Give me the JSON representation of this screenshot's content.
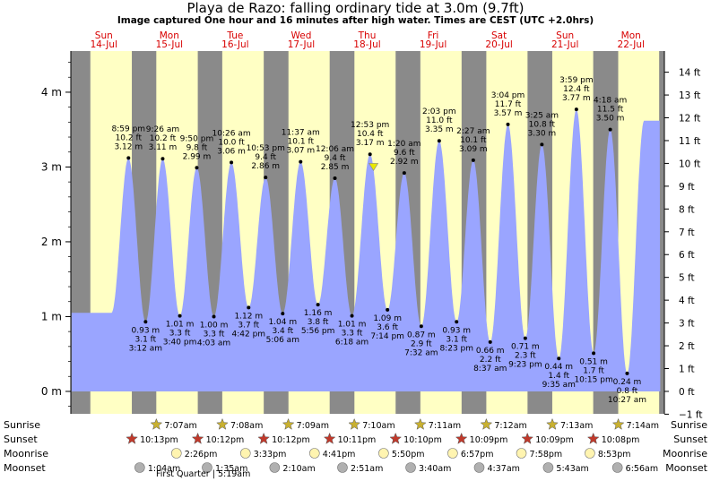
{
  "chart_data": {
    "type": "area",
    "title": "Playa de Razo: falling  ordinary tide at 3.0m (9.7ft)",
    "subtitle": "Image captured One hour and 16 minutes after high water. Times are CEST (UTC +2.0hrs)",
    "days": [
      {
        "name": "Sun",
        "date": "14-Jul"
      },
      {
        "name": "Mon",
        "date": "15-Jul"
      },
      {
        "name": "Tue",
        "date": "16-Jul"
      },
      {
        "name": "Wed",
        "date": "17-Jul"
      },
      {
        "name": "Thu",
        "date": "18-Jul"
      },
      {
        "name": "Fri",
        "date": "19-Jul"
      },
      {
        "name": "Sat",
        "date": "20-Jul"
      },
      {
        "name": "Sun",
        "date": "21-Jul"
      },
      {
        "name": "Mon",
        "date": "22-Jul"
      }
    ],
    "y_left_unit": "m",
    "y_left_ticks": [
      {
        "value": 0,
        "label": "0 m"
      },
      {
        "value": 1,
        "label": "1 m"
      },
      {
        "value": 2,
        "label": "2 m"
      },
      {
        "value": 3,
        "label": "3 m"
      },
      {
        "value": 4,
        "label": "4 m"
      }
    ],
    "y_right_ticks": [
      "−1 ft",
      "0 ft",
      "1 ft",
      "2 ft",
      "3 ft",
      "4 ft",
      "5 ft",
      "6 ft",
      "7 ft",
      "8 ft",
      "9 ft",
      "10 ft",
      "11 ft",
      "12 ft",
      "13 ft",
      "14 ft"
    ],
    "ylim_m": [
      -0.3,
      4.55
    ],
    "xlim_hours": [
      0,
      216
    ],
    "series": [
      {
        "type": "high",
        "hours_since_sun_0000": 20.98,
        "time": "8:59 pm",
        "ft": "10.2 ft",
        "m": 3.12,
        "m_label": "3.12 m"
      },
      {
        "type": "low",
        "hours_since_sun_0000": 27.2,
        "time": "3:12 am",
        "ft": "3.1 ft",
        "m": 0.93,
        "m_label": "0.93 m"
      },
      {
        "type": "high",
        "hours_since_sun_0000": 33.43,
        "time": "9:26 am",
        "ft": "10.2 ft",
        "m": 3.11,
        "m_label": "3.11 m"
      },
      {
        "type": "low",
        "hours_since_sun_0000": 39.67,
        "time": "3:40 pm",
        "ft": "3.3 ft",
        "m": 1.01,
        "m_label": "1.01 m"
      },
      {
        "type": "high",
        "hours_since_sun_0000": 45.83,
        "time": "9:50 pm",
        "ft": "9.8 ft",
        "m": 2.99,
        "m_label": "2.99 m"
      },
      {
        "type": "low",
        "hours_since_sun_0000": 52.05,
        "time": "4:03 am",
        "ft": "3.3 ft",
        "m": 1.0,
        "m_label": "1.00 m"
      },
      {
        "type": "high",
        "hours_since_sun_0000": 58.43,
        "time": "10:26 am",
        "ft": "10.0 ft",
        "m": 3.06,
        "m_label": "3.06 m"
      },
      {
        "type": "low",
        "hours_since_sun_0000": 64.7,
        "time": "4:42 pm",
        "ft": "3.7 ft",
        "m": 1.12,
        "m_label": "1.12 m"
      },
      {
        "type": "high",
        "hours_since_sun_0000": 70.88,
        "time": "10:53 pm",
        "ft": "9.4 ft",
        "m": 2.86,
        "m_label": "2.86 m"
      },
      {
        "type": "low",
        "hours_since_sun_0000": 77.1,
        "time": "5:06 am",
        "ft": "3.4 ft",
        "m": 1.04,
        "m_label": "1.04 m"
      },
      {
        "type": "high",
        "hours_since_sun_0000": 83.62,
        "time": "11:37 am",
        "ft": "10.1 ft",
        "m": 3.07,
        "m_label": "3.07 m"
      },
      {
        "type": "low",
        "hours_since_sun_0000": 89.93,
        "time": "5:56 pm",
        "ft": "3.8 ft",
        "m": 1.16,
        "m_label": "1.16 m"
      },
      {
        "type": "high",
        "hours_since_sun_0000": 96.1,
        "time": "12:06 am",
        "ft": "9.4 ft",
        "m": 2.85,
        "m_label": "2.85 m"
      },
      {
        "type": "low",
        "hours_since_sun_0000": 102.3,
        "time": "6:18 am",
        "ft": "3.3 ft",
        "m": 1.01,
        "m_label": "1.01 m"
      },
      {
        "type": "high",
        "hours_since_sun_0000": 108.88,
        "time": "12:53 pm",
        "ft": "10.4 ft",
        "m": 3.17,
        "m_label": "3.17 m"
      },
      {
        "type": "low",
        "hours_since_sun_0000": 115.23,
        "time": "7:14 pm",
        "ft": "3.6 ft",
        "m": 1.09,
        "m_label": "1.09 m"
      },
      {
        "type": "high",
        "hours_since_sun_0000": 121.33,
        "time": "1:20 am",
        "ft": "9.6 ft",
        "m": 2.92,
        "m_label": "2.92 m"
      },
      {
        "type": "low",
        "hours_since_sun_0000": 127.53,
        "time": "7:32 am",
        "ft": "2.9 ft",
        "m": 0.87,
        "m_label": "0.87 m"
      },
      {
        "type": "high",
        "hours_since_sun_0000": 134.05,
        "time": "2:03 pm",
        "ft": "11.0 ft",
        "m": 3.35,
        "m_label": "3.35 m"
      },
      {
        "type": "low",
        "hours_since_sun_0000": 140.38,
        "time": "8:23 pm",
        "ft": "3.1 ft",
        "m": 0.93,
        "m_label": "0.93 m"
      },
      {
        "type": "high",
        "hours_since_sun_0000": 146.45,
        "time": "2:27 am",
        "ft": "10.1 ft",
        "m": 3.09,
        "m_label": "3.09 m"
      },
      {
        "type": "low",
        "hours_since_sun_0000": 152.62,
        "time": "8:37 am",
        "ft": "2.2 ft",
        "m": 0.66,
        "m_label": "0.66 m"
      },
      {
        "type": "high",
        "hours_since_sun_0000": 159.07,
        "time": "3:04 pm",
        "ft": "11.7 ft",
        "m": 3.57,
        "m_label": "3.57 m"
      },
      {
        "type": "low",
        "hours_since_sun_0000": 165.38,
        "time": "9:23 pm",
        "ft": "2.3 ft",
        "m": 0.71,
        "m_label": "0.71 m"
      },
      {
        "type": "high",
        "hours_since_sun_0000": 171.42,
        "time": "3:25 am",
        "ft": "10.8 ft",
        "m": 3.3,
        "m_label": "3.30 m"
      },
      {
        "type": "low",
        "hours_since_sun_0000": 177.58,
        "time": "9:35 am",
        "ft": "1.4 ft",
        "m": 0.44,
        "m_label": "0.44 m"
      },
      {
        "type": "high",
        "hours_since_sun_0000": 183.98,
        "time": "3:59 pm",
        "ft": "12.4 ft",
        "m": 3.77,
        "m_label": "3.77 m"
      },
      {
        "type": "low",
        "hours_since_sun_0000": 190.25,
        "time": "10:15 pm",
        "ft": "1.7 ft",
        "m": 0.51,
        "m_label": "0.51 m"
      },
      {
        "type": "high",
        "hours_since_sun_0000": 196.3,
        "time": "4:18 am",
        "ft": "11.5 ft",
        "m": 3.5,
        "m_label": "3.50 m"
      },
      {
        "type": "low",
        "hours_since_sun_0000": 202.45,
        "time": "10:27 am",
        "ft": "0.8 ft",
        "m": 0.24,
        "m_label": "0.24 m"
      }
    ],
    "current_marker_hours": 110.15,
    "nights": [
      [
        0,
        7.1
      ],
      [
        22.2,
        31.1
      ],
      [
        46.2,
        55.1
      ],
      [
        70.2,
        79.2
      ],
      [
        94.2,
        103.2
      ],
      [
        118.2,
        127.2
      ],
      [
        142.2,
        151.2
      ],
      [
        166.2,
        175.2
      ],
      [
        190.1,
        199.2
      ],
      [
        214.1,
        216
      ]
    ],
    "rows": {
      "sunrise": {
        "label": "Sunrise",
        "items": [
          {
            "h": 31.12,
            "t": "7:07am"
          },
          {
            "h": 55.13,
            "t": "7:08am"
          },
          {
            "h": 79.15,
            "t": "7:09am"
          },
          {
            "h": 103.17,
            "t": "7:10am"
          },
          {
            "h": 127.18,
            "t": "7:11am"
          },
          {
            "h": 151.2,
            "t": "7:12am"
          },
          {
            "h": 175.22,
            "t": "7:13am"
          },
          {
            "h": 199.23,
            "t": "7:14am"
          }
        ]
      },
      "sunset": {
        "label": "Sunset",
        "items": [
          {
            "h": 22.22,
            "t": "10:13pm"
          },
          {
            "h": 46.2,
            "t": "10:12pm"
          },
          {
            "h": 70.2,
            "t": "10:12pm"
          },
          {
            "h": 94.18,
            "t": "10:11pm"
          },
          {
            "h": 118.17,
            "t": "10:10pm"
          },
          {
            "h": 142.15,
            "t": "10:09pm"
          },
          {
            "h": 166.15,
            "t": "10:09pm"
          },
          {
            "h": 190.13,
            "t": "10:08pm"
          }
        ]
      },
      "moonrise": {
        "label": "Moonrise",
        "items": [
          {
            "h": 38.43,
            "t": "2:26pm"
          },
          {
            "h": 63.55,
            "t": "3:33pm"
          },
          {
            "h": 88.68,
            "t": "4:41pm"
          },
          {
            "h": 113.83,
            "t": "5:50pm"
          },
          {
            "h": 138.95,
            "t": "6:57pm"
          },
          {
            "h": 163.97,
            "t": "7:58pm"
          },
          {
            "h": 188.88,
            "t": "8:53pm"
          }
        ]
      },
      "moonset": {
        "label": "Moonset",
        "items": [
          {
            "h": 25.07,
            "t": "1:04am"
          },
          {
            "h": 49.58,
            "t": "1:35am"
          },
          {
            "h": 74.17,
            "t": "2:10am"
          },
          {
            "h": 98.85,
            "t": "2:51am"
          },
          {
            "h": 123.67,
            "t": "3:40am"
          },
          {
            "h": 148.62,
            "t": "4:37am"
          },
          {
            "h": 173.72,
            "t": "5:43am"
          },
          {
            "h": 198.93,
            "t": "6:56am"
          }
        ]
      }
    },
    "moon_phase_note": "First Quarter | 5:19am",
    "colors": {
      "water": "#9aa5ff",
      "day": "#ffffc4",
      "night": "#8a8a8a",
      "day_label": "#d80000",
      "sun_star": "#c8b030",
      "sunset_star": "#c0392b",
      "moonrise": "#fff4b0",
      "moonset": "#b0b0b0",
      "marker": "#e8e800"
    }
  }
}
